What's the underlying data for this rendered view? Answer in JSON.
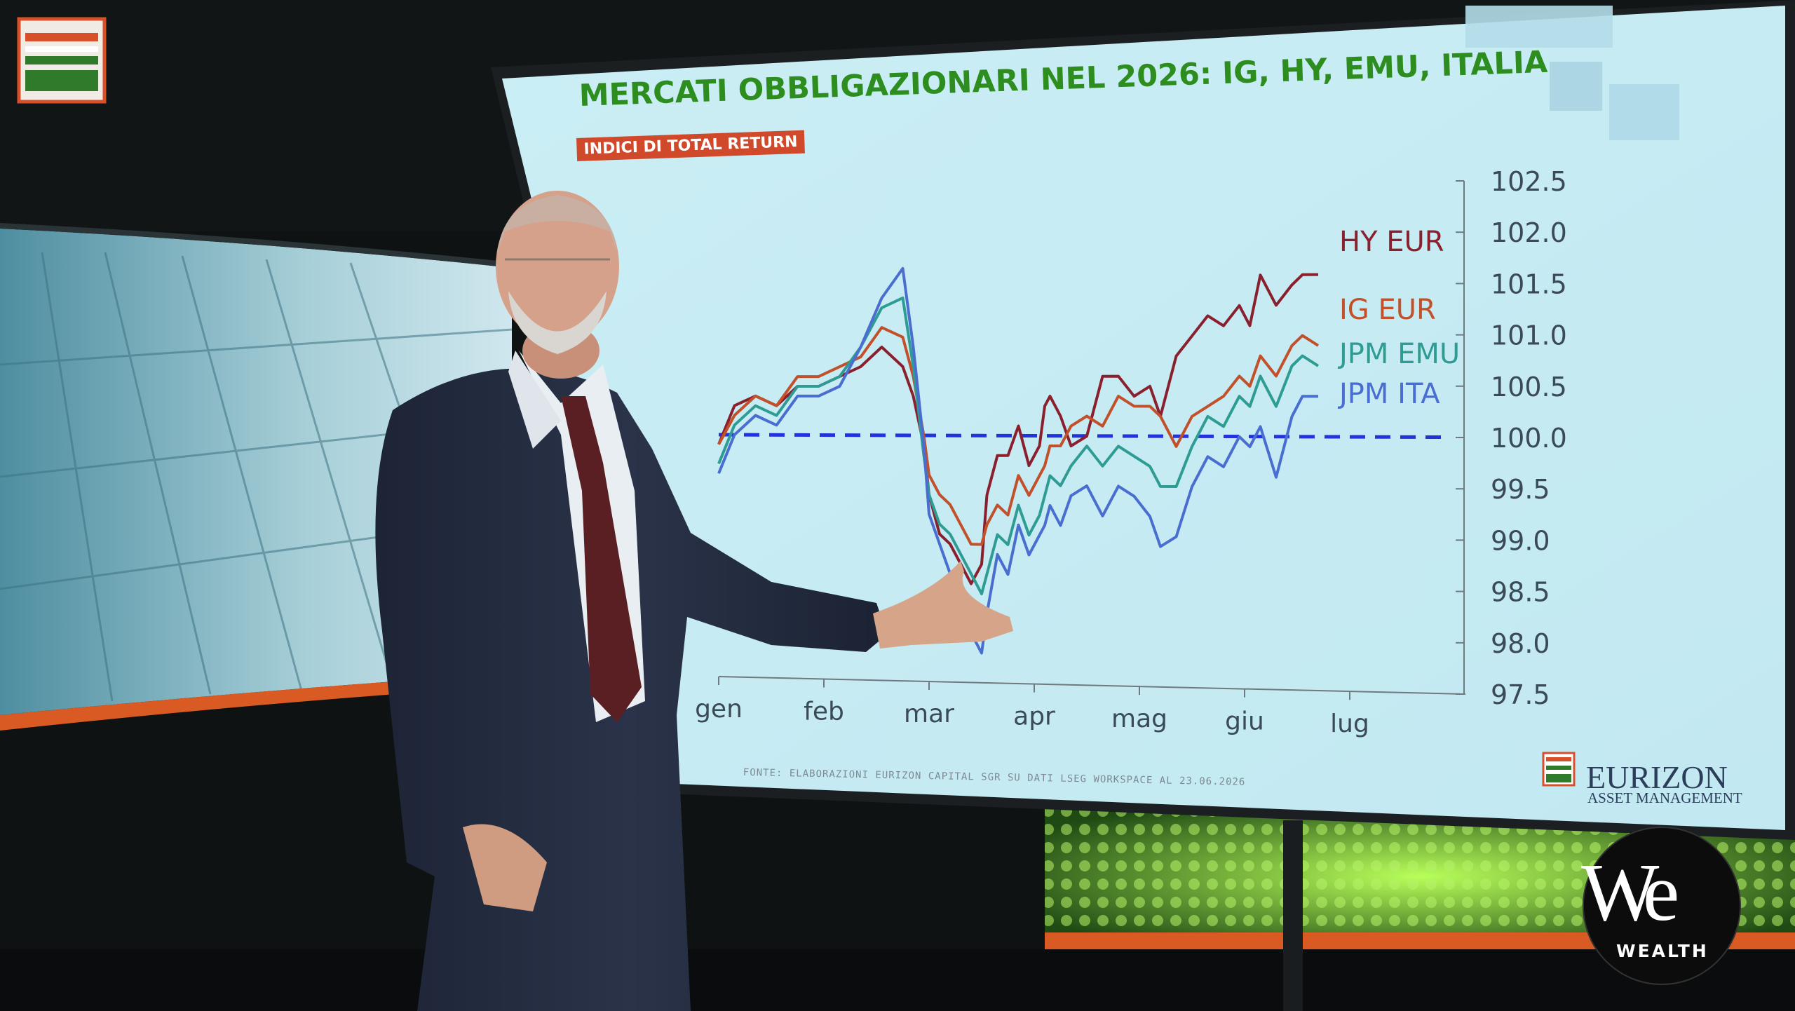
{
  "chart_data": {
    "type": "line",
    "title": "MERCATI OBBLIGAZIONARI NEL 2026: IG, HY, EMU, ITALIA",
    "subtitle": "INDICI DI TOTAL RETURN",
    "source": "FONTE: ELABORAZIONI EURIZON CAPITAL SGR SU DATI LSEG WORKSPACE AL 23.06.2026",
    "x_categories": [
      "gen",
      "feb",
      "mar",
      "apr",
      "mag",
      "giu",
      "lug"
    ],
    "ylim": [
      97.5,
      102.5
    ],
    "y_ticks": [
      "102.5",
      "102.0",
      "101.5",
      "101.0",
      "100.5",
      "100.0",
      "99.5",
      "99.0",
      "98.5",
      "98.0",
      "97.5"
    ],
    "reference_line": {
      "value": 100.0,
      "style": "dashed",
      "color": "#2233dd"
    },
    "series": [
      {
        "name": "HY EUR",
        "color": "#8a1f2e",
        "x": [
          0.0,
          0.15,
          0.35,
          0.55,
          0.75,
          0.95,
          1.15,
          1.35,
          1.55,
          1.75,
          1.85,
          1.95,
          2.0,
          2.1,
          2.2,
          2.3,
          2.4,
          2.5,
          2.55,
          2.65,
          2.75,
          2.85,
          2.95,
          3.05,
          3.1,
          3.15,
          3.25,
          3.35,
          3.5,
          3.65,
          3.8,
          3.95,
          4.1,
          4.2,
          4.35,
          4.5,
          4.65,
          4.8,
          4.95,
          5.05,
          5.15,
          5.3,
          5.45,
          5.55,
          5.7
        ],
        "values": [
          99.9,
          100.3,
          100.4,
          100.3,
          100.5,
          100.5,
          100.6,
          100.7,
          100.9,
          100.7,
          100.4,
          99.9,
          99.4,
          99.0,
          98.9,
          98.7,
          98.5,
          98.7,
          99.4,
          99.8,
          99.8,
          100.1,
          99.7,
          99.9,
          100.3,
          100.4,
          100.2,
          99.9,
          100.0,
          100.6,
          100.6,
          100.4,
          100.5,
          100.2,
          100.8,
          101.0,
          101.2,
          101.1,
          101.3,
          101.1,
          101.6,
          101.3,
          101.5,
          101.6,
          101.6
        ]
      },
      {
        "name": "IG EUR",
        "color": "#c2502a",
        "x": [
          0.0,
          0.15,
          0.35,
          0.55,
          0.75,
          0.95,
          1.15,
          1.35,
          1.55,
          1.75,
          1.85,
          1.95,
          2.0,
          2.1,
          2.2,
          2.3,
          2.4,
          2.5,
          2.55,
          2.65,
          2.75,
          2.85,
          2.95,
          3.05,
          3.1,
          3.15,
          3.25,
          3.35,
          3.5,
          3.65,
          3.8,
          3.95,
          4.1,
          4.2,
          4.35,
          4.5,
          4.65,
          4.8,
          4.95,
          5.05,
          5.15,
          5.3,
          5.45,
          5.55,
          5.7
        ],
        "values": [
          99.9,
          100.2,
          100.4,
          100.3,
          100.6,
          100.6,
          100.7,
          100.8,
          101.1,
          101.0,
          100.6,
          100.0,
          99.6,
          99.4,
          99.3,
          99.1,
          98.9,
          98.9,
          99.1,
          99.3,
          99.2,
          99.6,
          99.4,
          99.6,
          99.7,
          99.9,
          99.9,
          100.1,
          100.2,
          100.1,
          100.4,
          100.3,
          100.3,
          100.2,
          99.9,
          100.2,
          100.3,
          100.4,
          100.6,
          100.5,
          100.8,
          100.6,
          100.9,
          101.0,
          100.9
        ]
      },
      {
        "name": "JPM EMU",
        "color": "#2f9c93",
        "x": [
          0.0,
          0.15,
          0.35,
          0.55,
          0.75,
          0.95,
          1.15,
          1.35,
          1.55,
          1.75,
          1.85,
          1.95,
          2.0,
          2.1,
          2.2,
          2.3,
          2.4,
          2.5,
          2.55,
          2.65,
          2.75,
          2.85,
          2.95,
          3.05,
          3.1,
          3.15,
          3.25,
          3.35,
          3.5,
          3.65,
          3.8,
          3.95,
          4.1,
          4.2,
          4.35,
          4.5,
          4.65,
          4.8,
          4.95,
          5.05,
          5.15,
          5.3,
          5.45,
          5.55,
          5.7
        ],
        "values": [
          99.7,
          100.1,
          100.3,
          100.2,
          100.5,
          100.5,
          100.6,
          100.9,
          101.3,
          101.4,
          100.7,
          99.8,
          99.4,
          99.1,
          99.0,
          98.8,
          98.6,
          98.4,
          98.6,
          99.0,
          98.9,
          99.3,
          99.0,
          99.2,
          99.4,
          99.6,
          99.5,
          99.7,
          99.9,
          99.7,
          99.9,
          99.8,
          99.7,
          99.5,
          99.5,
          99.9,
          100.2,
          100.1,
          100.4,
          100.3,
          100.6,
          100.3,
          100.7,
          100.8,
          100.7
        ]
      },
      {
        "name": "JPM ITA",
        "color": "#4a6ed0",
        "x": [
          0.0,
          0.15,
          0.35,
          0.55,
          0.75,
          0.95,
          1.15,
          1.35,
          1.55,
          1.75,
          1.85,
          1.95,
          2.0,
          2.1,
          2.2,
          2.3,
          2.4,
          2.5,
          2.55,
          2.65,
          2.75,
          2.85,
          2.95,
          3.05,
          3.1,
          3.15,
          3.25,
          3.35,
          3.5,
          3.65,
          3.8,
          3.95,
          4.1,
          4.2,
          4.35,
          4.5,
          4.65,
          4.8,
          4.95,
          5.05,
          5.15,
          5.3,
          5.45,
          5.55,
          5.7
        ],
        "values": [
          99.6,
          100.0,
          100.2,
          100.1,
          100.4,
          100.4,
          100.5,
          100.9,
          101.4,
          101.7,
          100.9,
          99.9,
          99.2,
          98.9,
          98.6,
          98.3,
          98.0,
          97.8,
          98.2,
          98.8,
          98.6,
          99.1,
          98.8,
          99.0,
          99.1,
          99.3,
          99.1,
          99.4,
          99.5,
          99.2,
          99.5,
          99.4,
          99.2,
          98.9,
          99.0,
          99.5,
          99.8,
          99.7,
          100.0,
          99.9,
          100.1,
          99.6,
          100.2,
          100.4,
          100.4
        ]
      }
    ],
    "grid": false,
    "legend": "right, inline labels"
  },
  "brand": {
    "logo_name": "EURIZON",
    "logo_sub": "ASSET MANAGEMENT"
  },
  "channel": {
    "logo_we": "We",
    "logo_wealth": "WEALTH"
  },
  "colors": {
    "screen_bg": "#c9ecf3",
    "title": "#2e8d1f",
    "subtitle_bg": "#d0492a"
  }
}
